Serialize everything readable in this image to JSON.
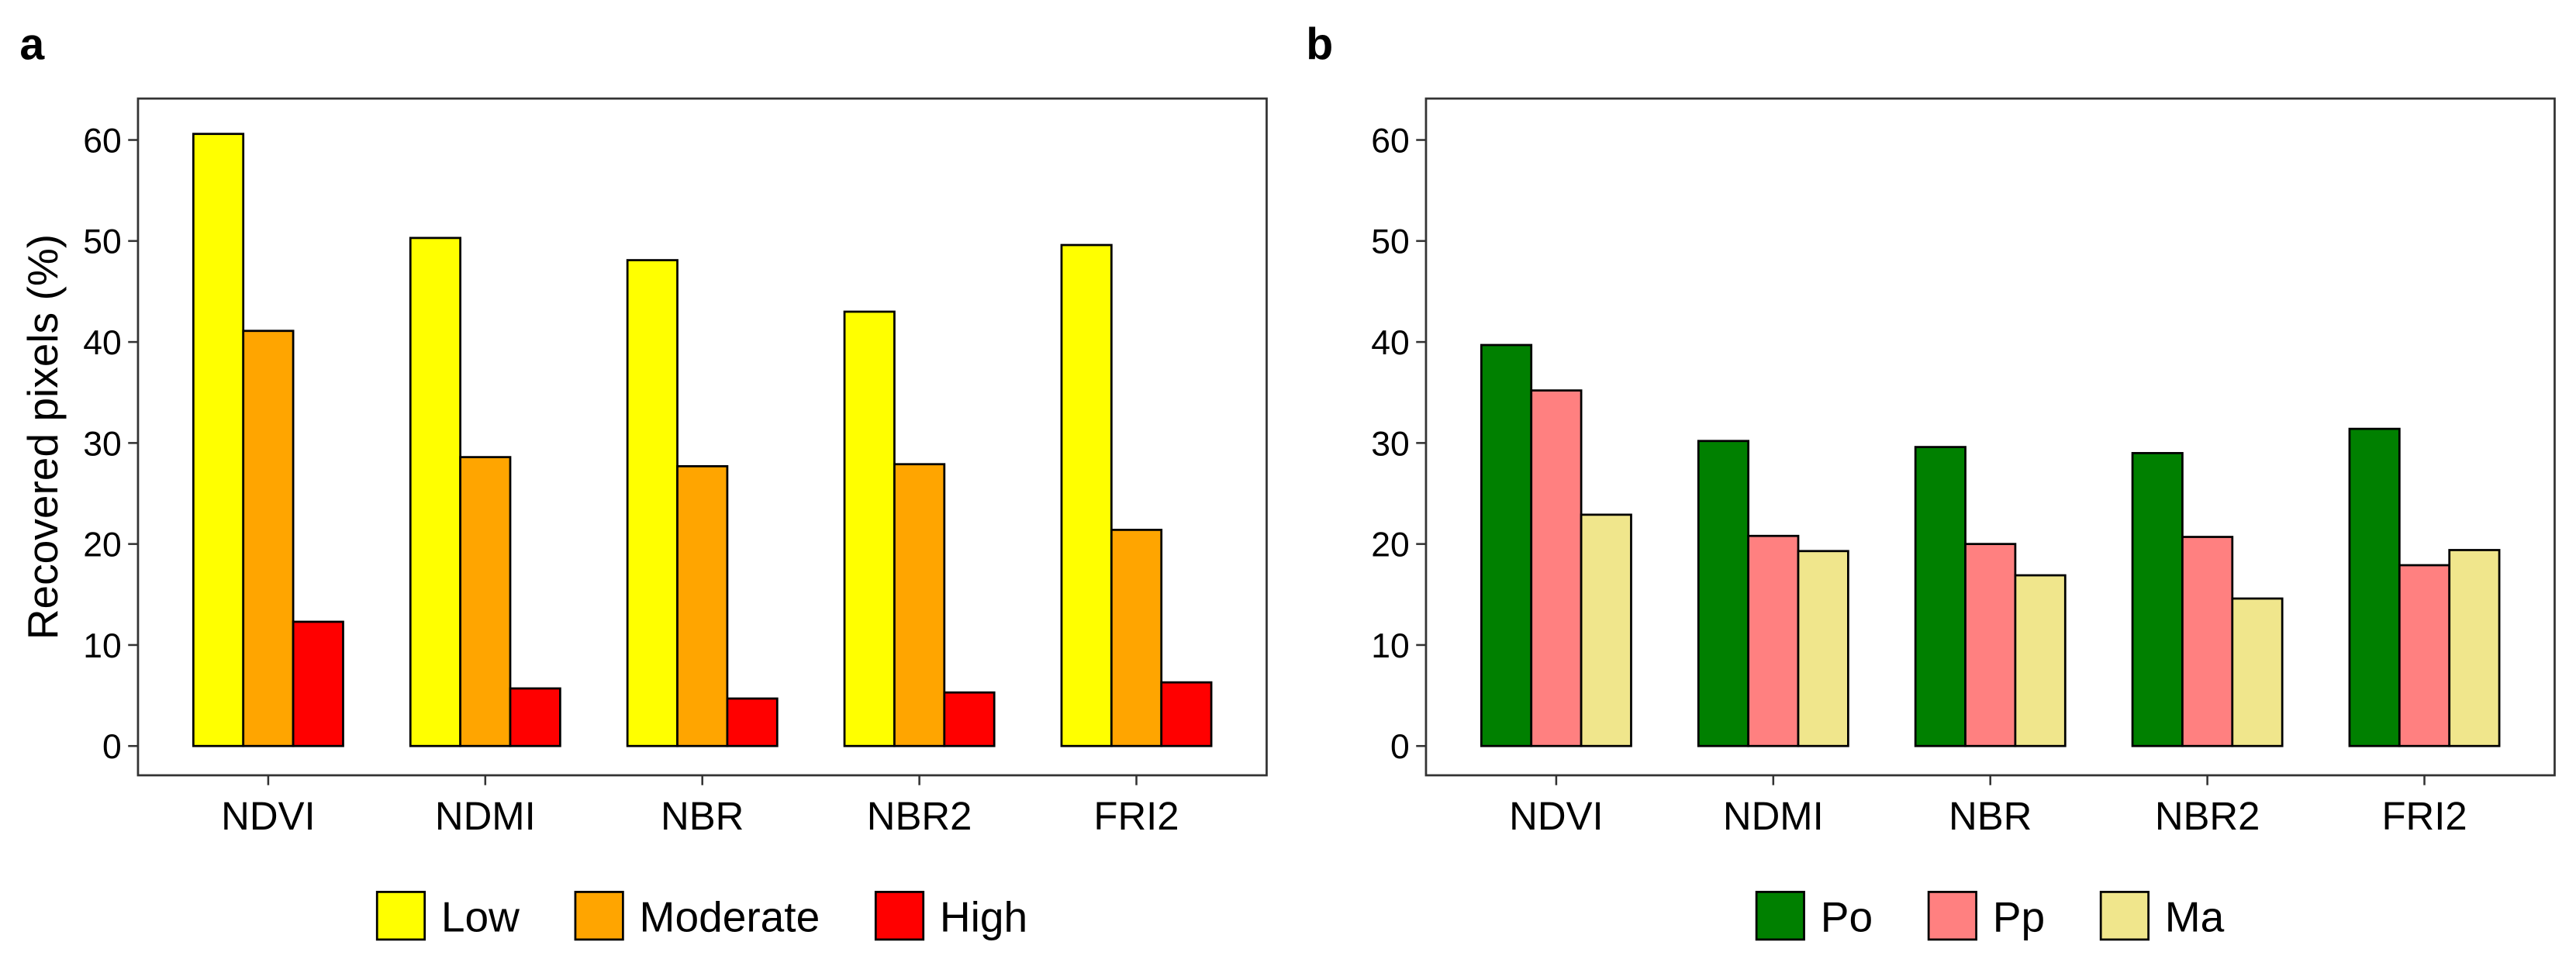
{
  "chart_data": [
    {
      "type": "bar",
      "panel_label": "a",
      "y_label": "Recovered pixels (%)",
      "categories": [
        "NDVI",
        "NDMI",
        "NBR",
        "NBR2",
        "FRI2"
      ],
      "series": [
        {
          "name": "Low",
          "color": "#ffff00",
          "values": [
            60.6,
            50.3,
            48.1,
            43.0,
            49.6
          ]
        },
        {
          "name": "Moderate",
          "color": "#ffa500",
          "values": [
            41.1,
            28.6,
            27.7,
            27.9,
            21.4
          ]
        },
        {
          "name": "High",
          "color": "#ff0000",
          "values": [
            12.3,
            5.7,
            4.7,
            5.3,
            6.3
          ]
        }
      ],
      "ylim": [
        -2.9,
        64.1
      ],
      "yticks": [
        0,
        10,
        20,
        30,
        40,
        50,
        60
      ],
      "legend": "bottom"
    },
    {
      "type": "bar",
      "panel_label": "b",
      "categories": [
        "NDVI",
        "NDMI",
        "NBR",
        "NBR2",
        "FRI2"
      ],
      "series": [
        {
          "name": "Po",
          "color": "#008000",
          "values": [
            39.7,
            30.2,
            29.6,
            29.0,
            31.4
          ]
        },
        {
          "name": "Pp",
          "color": "#ff8080",
          "values": [
            35.2,
            20.8,
            20.0,
            20.7,
            17.9
          ]
        },
        {
          "name": "Ma",
          "color": "#f0e68c",
          "values": [
            22.9,
            19.3,
            16.9,
            14.6,
            19.4
          ]
        }
      ],
      "ylim": [
        -2.9,
        64.1
      ],
      "yticks": [
        0,
        10,
        20,
        30,
        40,
        50,
        60
      ],
      "legend": "bottom"
    }
  ]
}
